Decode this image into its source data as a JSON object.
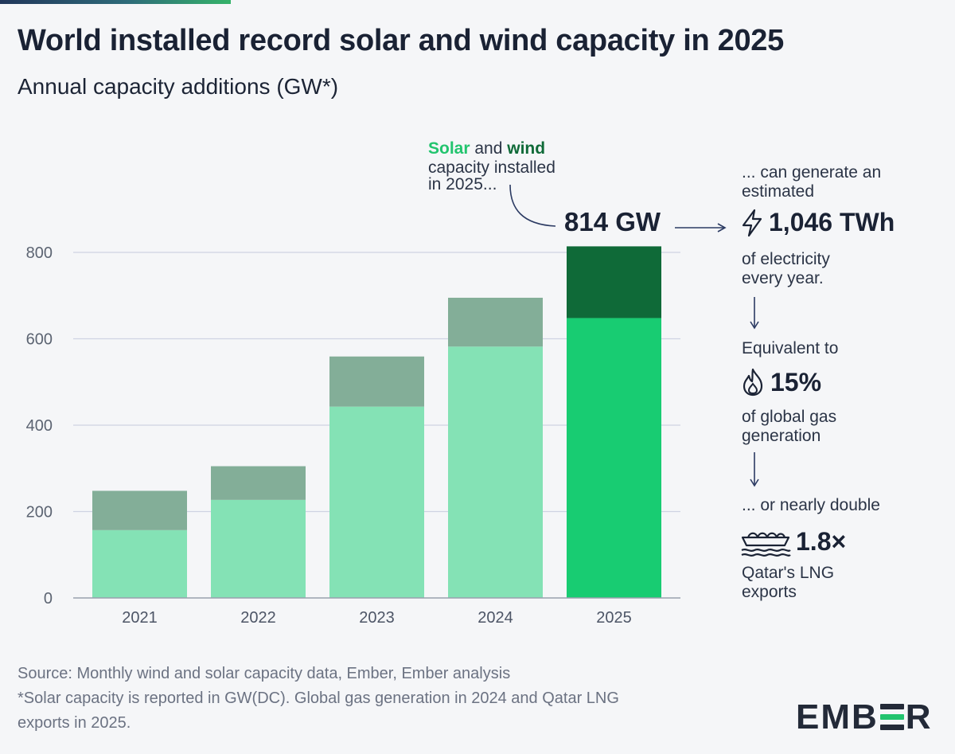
{
  "title": "World installed record solar and wind capacity in 2025",
  "subtitle": "Annual capacity additions (GW*)",
  "chart_data": {
    "type": "bar",
    "stacked": true,
    "categories": [
      "2021",
      "2022",
      "2023",
      "2024",
      "2025"
    ],
    "series": [
      {
        "name": "Solar",
        "values": [
          157,
          227,
          443,
          582,
          648
        ]
      },
      {
        "name": "Wind",
        "values": [
          91,
          78,
          116,
          113,
          166
        ]
      }
    ],
    "totals": [
      248,
      305,
      559,
      695,
      814
    ],
    "ylim": [
      0,
      900
    ],
    "yticks": [
      0,
      200,
      400,
      600,
      800
    ],
    "grid": true,
    "colors": {
      "solar": "#84e2b5",
      "wind": "#83ae98",
      "solar_highlight": "#18cc72",
      "wind_highlight": "#0f6a38"
    }
  },
  "annotation": {
    "solar_word": "Solar",
    "and_word": " and ",
    "wind_word": "wind",
    "line2": "capacity installed",
    "line3": "in 2025...",
    "total_label": "814 GW"
  },
  "side": {
    "intro_1": "... can generate an",
    "intro_2": "estimated",
    "generation_value": "1,046 TWh",
    "generation_desc_1": "of electricity",
    "generation_desc_2": "every year.",
    "equiv_label": "Equivalent to",
    "gas_value": "15%",
    "gas_desc_1": "of global gas",
    "gas_desc_2": "generation",
    "double_label": "... or nearly double",
    "lng_value": "1.8×",
    "lng_desc_1": "Qatar's LNG",
    "lng_desc_2": "exports"
  },
  "footer": {
    "source": "Source: Monthly wind and solar capacity data, Ember, Ember analysis",
    "note_1": "*Solar capacity is reported in GW(DC). Global gas generation in 2024 and Qatar LNG",
    "note_2": "exports in 2025."
  },
  "logo": {
    "left": "EMB",
    "right": "R"
  }
}
